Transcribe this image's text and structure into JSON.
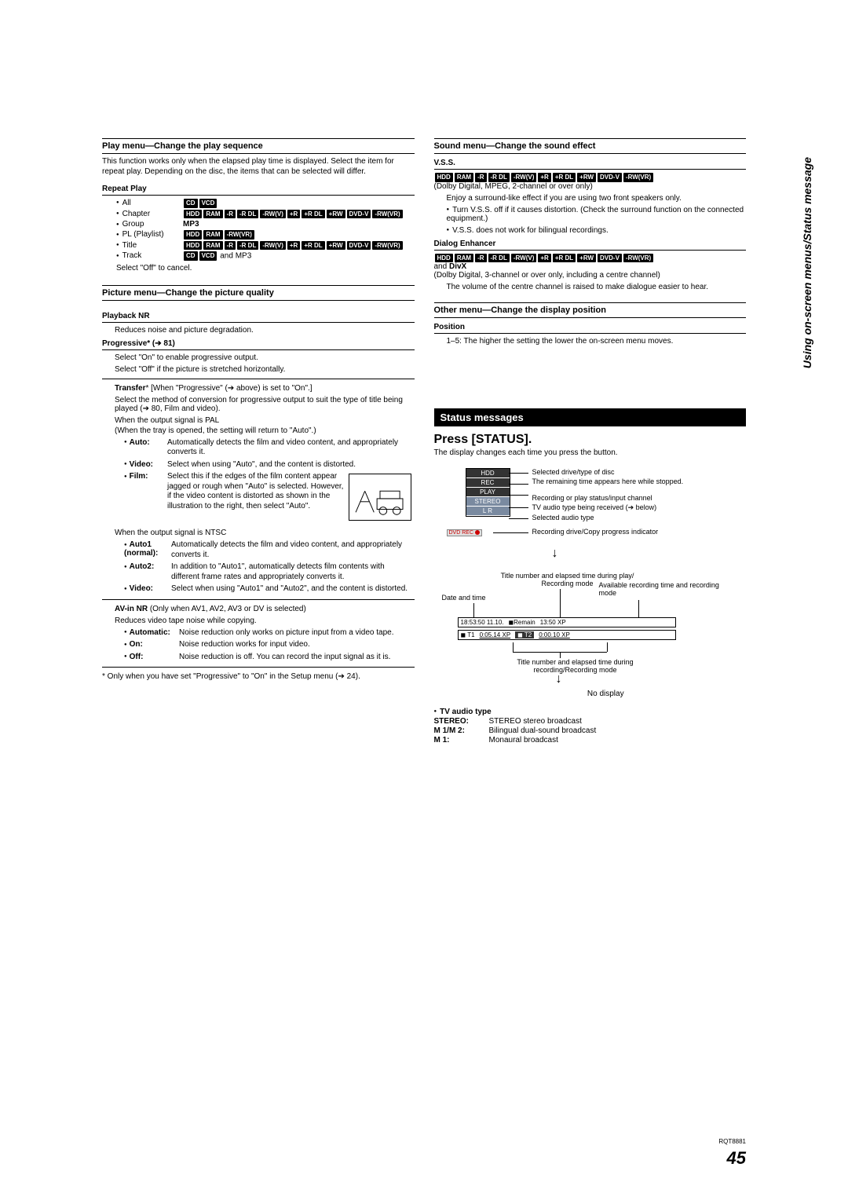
{
  "sideLabel": "Using on-screen menus/Status message",
  "pageNumber": "45",
  "docId": "RQT8881",
  "leftCol": {
    "playMenu": {
      "header": "Play menu—Change the play sequence",
      "intro": "This function works only when the elapsed play time is displayed. Select the item for repeat play. Depending on the disc, the items that can be selected will differ.",
      "repeatPlay": {
        "head": "Repeat Play",
        "items": [
          {
            "label": "All",
            "badges": [
              "CD",
              "VCD"
            ]
          },
          {
            "label": "Chapter",
            "badges": [
              "HDD",
              "RAM",
              "-R",
              "-R DL",
              "-RW(V)",
              "+R",
              "+R DL",
              "+RW",
              "DVD-V",
              "-RW(VR)"
            ]
          },
          {
            "label": "Group",
            "plain": "MP3"
          },
          {
            "label": "PL (Playlist)",
            "badges": [
              "HDD",
              "RAM",
              "-RW(VR)"
            ]
          },
          {
            "label": "Title",
            "badges": [
              "HDD",
              "RAM",
              "-R",
              "-R DL",
              "-RW(V)",
              "+R",
              "+R DL",
              "+RW",
              "DVD-V",
              "-RW(VR)"
            ]
          },
          {
            "label": "Track",
            "badges": [
              "CD",
              "VCD"
            ],
            "suffix": " and MP3"
          }
        ],
        "cancel": "Select \"Off\" to cancel."
      }
    },
    "pictureMenu": {
      "header": "Picture menu—Change the picture quality",
      "playbackNR": {
        "head": "Playback NR",
        "desc": "Reduces noise and picture degradation."
      },
      "progressive": {
        "head": "Progressive* (➔ 81)",
        "desc1": "Select \"On\" to enable progressive output.",
        "desc2": "Select \"Off\" if the picture is stretched horizontally."
      },
      "transfer": {
        "lead": "Transfer* [When \"Progressive\" (➔ above) is set to \"On\".]",
        "desc": "Select the method of conversion for progressive output to suit the type of title being played (➔ 80, Film and video).",
        "pal": "When the output signal is PAL",
        "palNote": "(When the tray is opened, the setting will return to \"Auto\".)",
        "palItems": [
          {
            "label": "Auto:",
            "desc": "Automatically detects the film and video content, and appropriately converts it."
          },
          {
            "label": "Video:",
            "desc": "Select when using \"Auto\", and the content is distorted."
          },
          {
            "label": "Film:",
            "desc": "Select this if the edges of the film content appear jagged or rough when \"Auto\" is selected. However, if the video content is distorted as shown in the illustration to the right, then select \"Auto\"."
          }
        ],
        "ntsc": "When the output signal is NTSC",
        "ntscItems": [
          {
            "label": "Auto1 (normal):",
            "desc": "Automatically detects the film and video content, and appropriately converts it."
          },
          {
            "label": "Auto2:",
            "desc": "In addition to \"Auto1\", automatically detects film contents with different frame rates and appropriately converts it."
          },
          {
            "label": "Video:",
            "desc": "Select when using \"Auto1\" and \"Auto2\", and the content is distorted."
          }
        ]
      },
      "avinNR": {
        "lead": "AV-in NR (Only when AV1, AV2, AV3 or DV is selected)",
        "desc": "Reduces video tape noise while copying.",
        "items": [
          {
            "label": "Automatic:",
            "desc": "Noise reduction only works on picture input from a video tape."
          },
          {
            "label": "On:",
            "desc": "Noise reduction works for input video."
          },
          {
            "label": "Off:",
            "desc": "Noise reduction is off. You can record the input signal as it is."
          }
        ]
      },
      "footnote": "* Only when you have set \"Progressive\" to \"On\" in the Setup menu (➔ 24)."
    }
  },
  "rightCol": {
    "soundMenu": {
      "header": "Sound menu—Change the sound effect",
      "vss": {
        "head": "V.S.S.",
        "badges": [
          "HDD",
          "RAM",
          "-R",
          "-R DL",
          "-RW(V)",
          "+R",
          "+R DL",
          "+RW",
          "DVD-V",
          "-RW(VR)"
        ],
        "note": "(Dolby Digital, MPEG, 2-channel or over only)",
        "desc": "Enjoy a surround-like effect if you are using two front speakers only.",
        "b1": "Turn V.S.S. off if it causes distortion. (Check the surround function on the connected equipment.)",
        "b2": "V.S.S. does not work for bilingual recordings."
      },
      "dialog": {
        "head": "Dialog Enhancer",
        "badges": [
          "HDD",
          "RAM",
          "-R",
          "-R DL",
          "-RW(V)",
          "+R",
          "+R DL",
          "+RW",
          "DVD-V",
          "-RW(VR)"
        ],
        "suffix": "and DivX",
        "note": "(Dolby Digital, 3-channel or over only, including a centre channel)",
        "desc": "The volume of the centre channel is raised to make dialogue easier to hear."
      }
    },
    "otherMenu": {
      "header": "Other menu—Change the display position",
      "position": {
        "head": "Position",
        "desc": "1–5: The higher the setting the lower the on-screen menu moves."
      }
    },
    "statusMessages": {
      "bar": "Status messages",
      "press": "Press [STATUS].",
      "intro": "The display changes each time you press the button.",
      "diagram1": {
        "rows": [
          "HDD",
          "REC",
          "PLAY",
          "STEREO",
          "L R"
        ],
        "dvdrec": "DVD REC",
        "labels": [
          "Selected drive/type of disc",
          "The remaining time appears here while stopped.",
          "Recording or play status/input channel",
          "TV audio type being received (➔ below)",
          "Selected audio type",
          "Recording drive/Copy progress indicator"
        ]
      },
      "diagram2": {
        "topLabels": {
          "l1": "Title number and elapsed time during play/ Recording mode",
          "l2": "Available recording time and recording mode",
          "l3": "Date and time"
        },
        "strip1": [
          "18:53:50 11.10.",
          "◼Remain",
          "13:50 XP"
        ],
        "strip2": [
          "◼ T1",
          "0:05.14 XP",
          "◼ T2",
          "0:00.10 XP"
        ],
        "bottomLabel": "Title number and elapsed time during recording/Recording mode",
        "noDisplay": "No display"
      },
      "tvAudio": {
        "head": "TV audio type",
        "items": [
          {
            "k": "STEREO:",
            "v": "STEREO stereo broadcast"
          },
          {
            "k": "M 1/M 2:",
            "v": "Bilingual dual-sound broadcast"
          },
          {
            "k": "M 1:",
            "v": "Monaural broadcast"
          }
        ]
      }
    }
  }
}
